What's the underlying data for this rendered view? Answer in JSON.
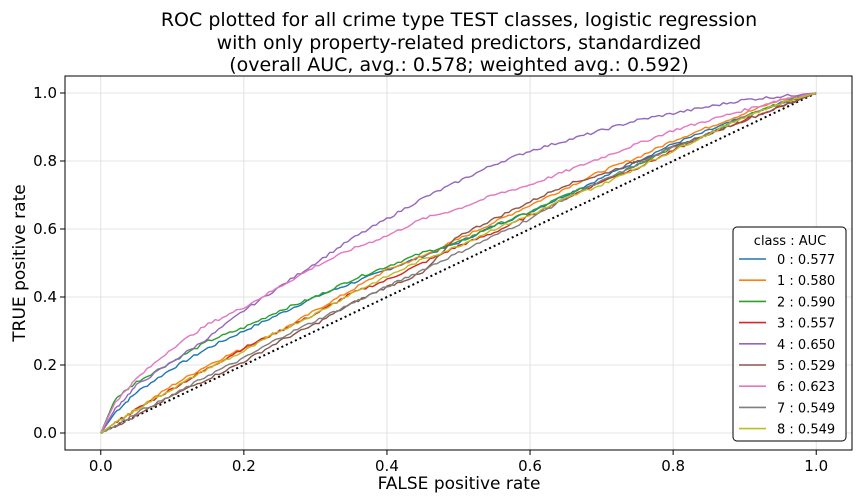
{
  "chart_data": {
    "type": "line",
    "title": [
      "ROC plotted for all crime type TEST classes, logistic regression",
      "with only property-related predictors, standardized",
      "(overall AUC, avg.: 0.578; weighted avg.: 0.592)"
    ],
    "xlabel": "FALSE positive rate",
    "ylabel": "TRUE positive rate",
    "xlim": [
      -0.05,
      1.05
    ],
    "ylim": [
      -0.05,
      1.05
    ],
    "xticks": [
      0.0,
      0.2,
      0.4,
      0.6,
      0.8,
      1.0
    ],
    "yticks": [
      0.0,
      0.2,
      0.4,
      0.6,
      0.8,
      1.0
    ],
    "tick_labels_x": [
      "0.0",
      "0.2",
      "0.4",
      "0.6",
      "0.8",
      "1.0"
    ],
    "tick_labels_y": [
      "0.0",
      "0.2",
      "0.4",
      "0.6",
      "0.8",
      "1.0"
    ],
    "grid": true,
    "legend": {
      "title": "class : AUC",
      "placement": "lower-right"
    },
    "reference_line": {
      "style": "dotted",
      "color": "#000000",
      "x": [
        0,
        1
      ],
      "y": [
        0,
        1
      ]
    },
    "series": [
      {
        "name": "0 : 0.577",
        "color": "#1f77b4",
        "x": [
          0,
          0.02,
          0.05,
          0.1,
          0.15,
          0.2,
          0.25,
          0.3,
          0.35,
          0.4,
          0.45,
          0.5,
          0.55,
          0.6,
          0.65,
          0.7,
          0.75,
          0.8,
          0.85,
          0.9,
          0.95,
          1.0
        ],
        "y": [
          0,
          0.06,
          0.12,
          0.19,
          0.25,
          0.3,
          0.35,
          0.4,
          0.44,
          0.48,
          0.52,
          0.56,
          0.61,
          0.65,
          0.7,
          0.75,
          0.8,
          0.85,
          0.89,
          0.93,
          0.97,
          1.0
        ]
      },
      {
        "name": "1 : 0.580",
        "color": "#ff7f0e",
        "x": [
          0,
          0.02,
          0.05,
          0.1,
          0.15,
          0.2,
          0.25,
          0.3,
          0.35,
          0.4,
          0.45,
          0.5,
          0.55,
          0.6,
          0.65,
          0.7,
          0.75,
          0.8,
          0.85,
          0.9,
          0.95,
          1.0
        ],
        "y": [
          0,
          0.03,
          0.07,
          0.14,
          0.2,
          0.25,
          0.3,
          0.36,
          0.42,
          0.48,
          0.52,
          0.57,
          0.62,
          0.67,
          0.72,
          0.77,
          0.81,
          0.86,
          0.9,
          0.94,
          0.98,
          1.0
        ]
      },
      {
        "name": "2 : 0.590",
        "color": "#2ca02c",
        "x": [
          0,
          0.02,
          0.05,
          0.1,
          0.15,
          0.2,
          0.25,
          0.3,
          0.35,
          0.4,
          0.45,
          0.5,
          0.55,
          0.6,
          0.65,
          0.7,
          0.75,
          0.8,
          0.85,
          0.9,
          0.95,
          1.0
        ],
        "y": [
          0,
          0.1,
          0.15,
          0.21,
          0.27,
          0.31,
          0.36,
          0.4,
          0.45,
          0.49,
          0.53,
          0.56,
          0.61,
          0.65,
          0.7,
          0.74,
          0.79,
          0.84,
          0.88,
          0.93,
          0.97,
          1.0
        ]
      },
      {
        "name": "3 : 0.557",
        "color": "#d62728",
        "x": [
          0,
          0.02,
          0.05,
          0.1,
          0.15,
          0.2,
          0.25,
          0.3,
          0.35,
          0.4,
          0.45,
          0.5,
          0.55,
          0.6,
          0.65,
          0.7,
          0.75,
          0.8,
          0.85,
          0.9,
          0.95,
          1.0
        ],
        "y": [
          0,
          0.03,
          0.07,
          0.13,
          0.19,
          0.25,
          0.3,
          0.35,
          0.41,
          0.45,
          0.5,
          0.55,
          0.59,
          0.64,
          0.69,
          0.74,
          0.78,
          0.83,
          0.88,
          0.92,
          0.96,
          1.0
        ]
      },
      {
        "name": "4 : 0.650",
        "color": "#9467bd",
        "x": [
          0,
          0.02,
          0.05,
          0.1,
          0.15,
          0.2,
          0.25,
          0.3,
          0.35,
          0.4,
          0.45,
          0.5,
          0.55,
          0.6,
          0.65,
          0.7,
          0.75,
          0.8,
          0.85,
          0.9,
          0.95,
          1.0
        ],
        "y": [
          0,
          0.07,
          0.14,
          0.21,
          0.28,
          0.36,
          0.43,
          0.5,
          0.57,
          0.63,
          0.69,
          0.74,
          0.79,
          0.83,
          0.86,
          0.89,
          0.92,
          0.94,
          0.96,
          0.98,
          0.99,
          1.0
        ]
      },
      {
        "name": "5 : 0.529",
        "color": "#8c564b",
        "x": [
          0,
          0.02,
          0.05,
          0.1,
          0.15,
          0.2,
          0.25,
          0.3,
          0.35,
          0.4,
          0.45,
          0.5,
          0.55,
          0.6,
          0.65,
          0.7,
          0.75,
          0.8,
          0.85,
          0.9,
          0.95,
          1.0
        ],
        "y": [
          0,
          0.02,
          0.05,
          0.11,
          0.16,
          0.21,
          0.27,
          0.32,
          0.38,
          0.43,
          0.47,
          0.58,
          0.63,
          0.68,
          0.73,
          0.76,
          0.8,
          0.84,
          0.88,
          0.92,
          0.96,
          1.0
        ]
      },
      {
        "name": "6 : 0.623",
        "color": "#e377c2",
        "x": [
          0,
          0.02,
          0.05,
          0.1,
          0.15,
          0.2,
          0.25,
          0.3,
          0.35,
          0.4,
          0.45,
          0.5,
          0.55,
          0.6,
          0.65,
          0.7,
          0.75,
          0.8,
          0.85,
          0.9,
          0.95,
          1.0
        ],
        "y": [
          0,
          0.09,
          0.16,
          0.25,
          0.32,
          0.37,
          0.43,
          0.49,
          0.54,
          0.58,
          0.63,
          0.66,
          0.7,
          0.73,
          0.77,
          0.81,
          0.85,
          0.89,
          0.92,
          0.95,
          0.98,
          1.0
        ]
      },
      {
        "name": "7 : 0.549",
        "color": "#7f7f7f",
        "x": [
          0,
          0.02,
          0.05,
          0.1,
          0.15,
          0.2,
          0.25,
          0.3,
          0.35,
          0.4,
          0.45,
          0.5,
          0.55,
          0.6,
          0.65,
          0.7,
          0.75,
          0.8,
          0.85,
          0.9,
          0.95,
          1.0
        ],
        "y": [
          0,
          0.02,
          0.06,
          0.11,
          0.17,
          0.22,
          0.28,
          0.33,
          0.38,
          0.43,
          0.48,
          0.53,
          0.58,
          0.63,
          0.69,
          0.74,
          0.79,
          0.84,
          0.88,
          0.93,
          0.97,
          1.0
        ]
      },
      {
        "name": "8 : 0.549",
        "color": "#bcbd22",
        "x": [
          0,
          0.02,
          0.05,
          0.1,
          0.15,
          0.2,
          0.25,
          0.3,
          0.35,
          0.4,
          0.45,
          0.5,
          0.55,
          0.6,
          0.65,
          0.7,
          0.75,
          0.8,
          0.85,
          0.9,
          0.95,
          1.0
        ],
        "y": [
          0,
          0.03,
          0.07,
          0.13,
          0.19,
          0.24,
          0.3,
          0.35,
          0.41,
          0.46,
          0.51,
          0.55,
          0.6,
          0.64,
          0.69,
          0.73,
          0.78,
          0.83,
          0.88,
          0.93,
          0.97,
          1.0
        ]
      }
    ]
  }
}
